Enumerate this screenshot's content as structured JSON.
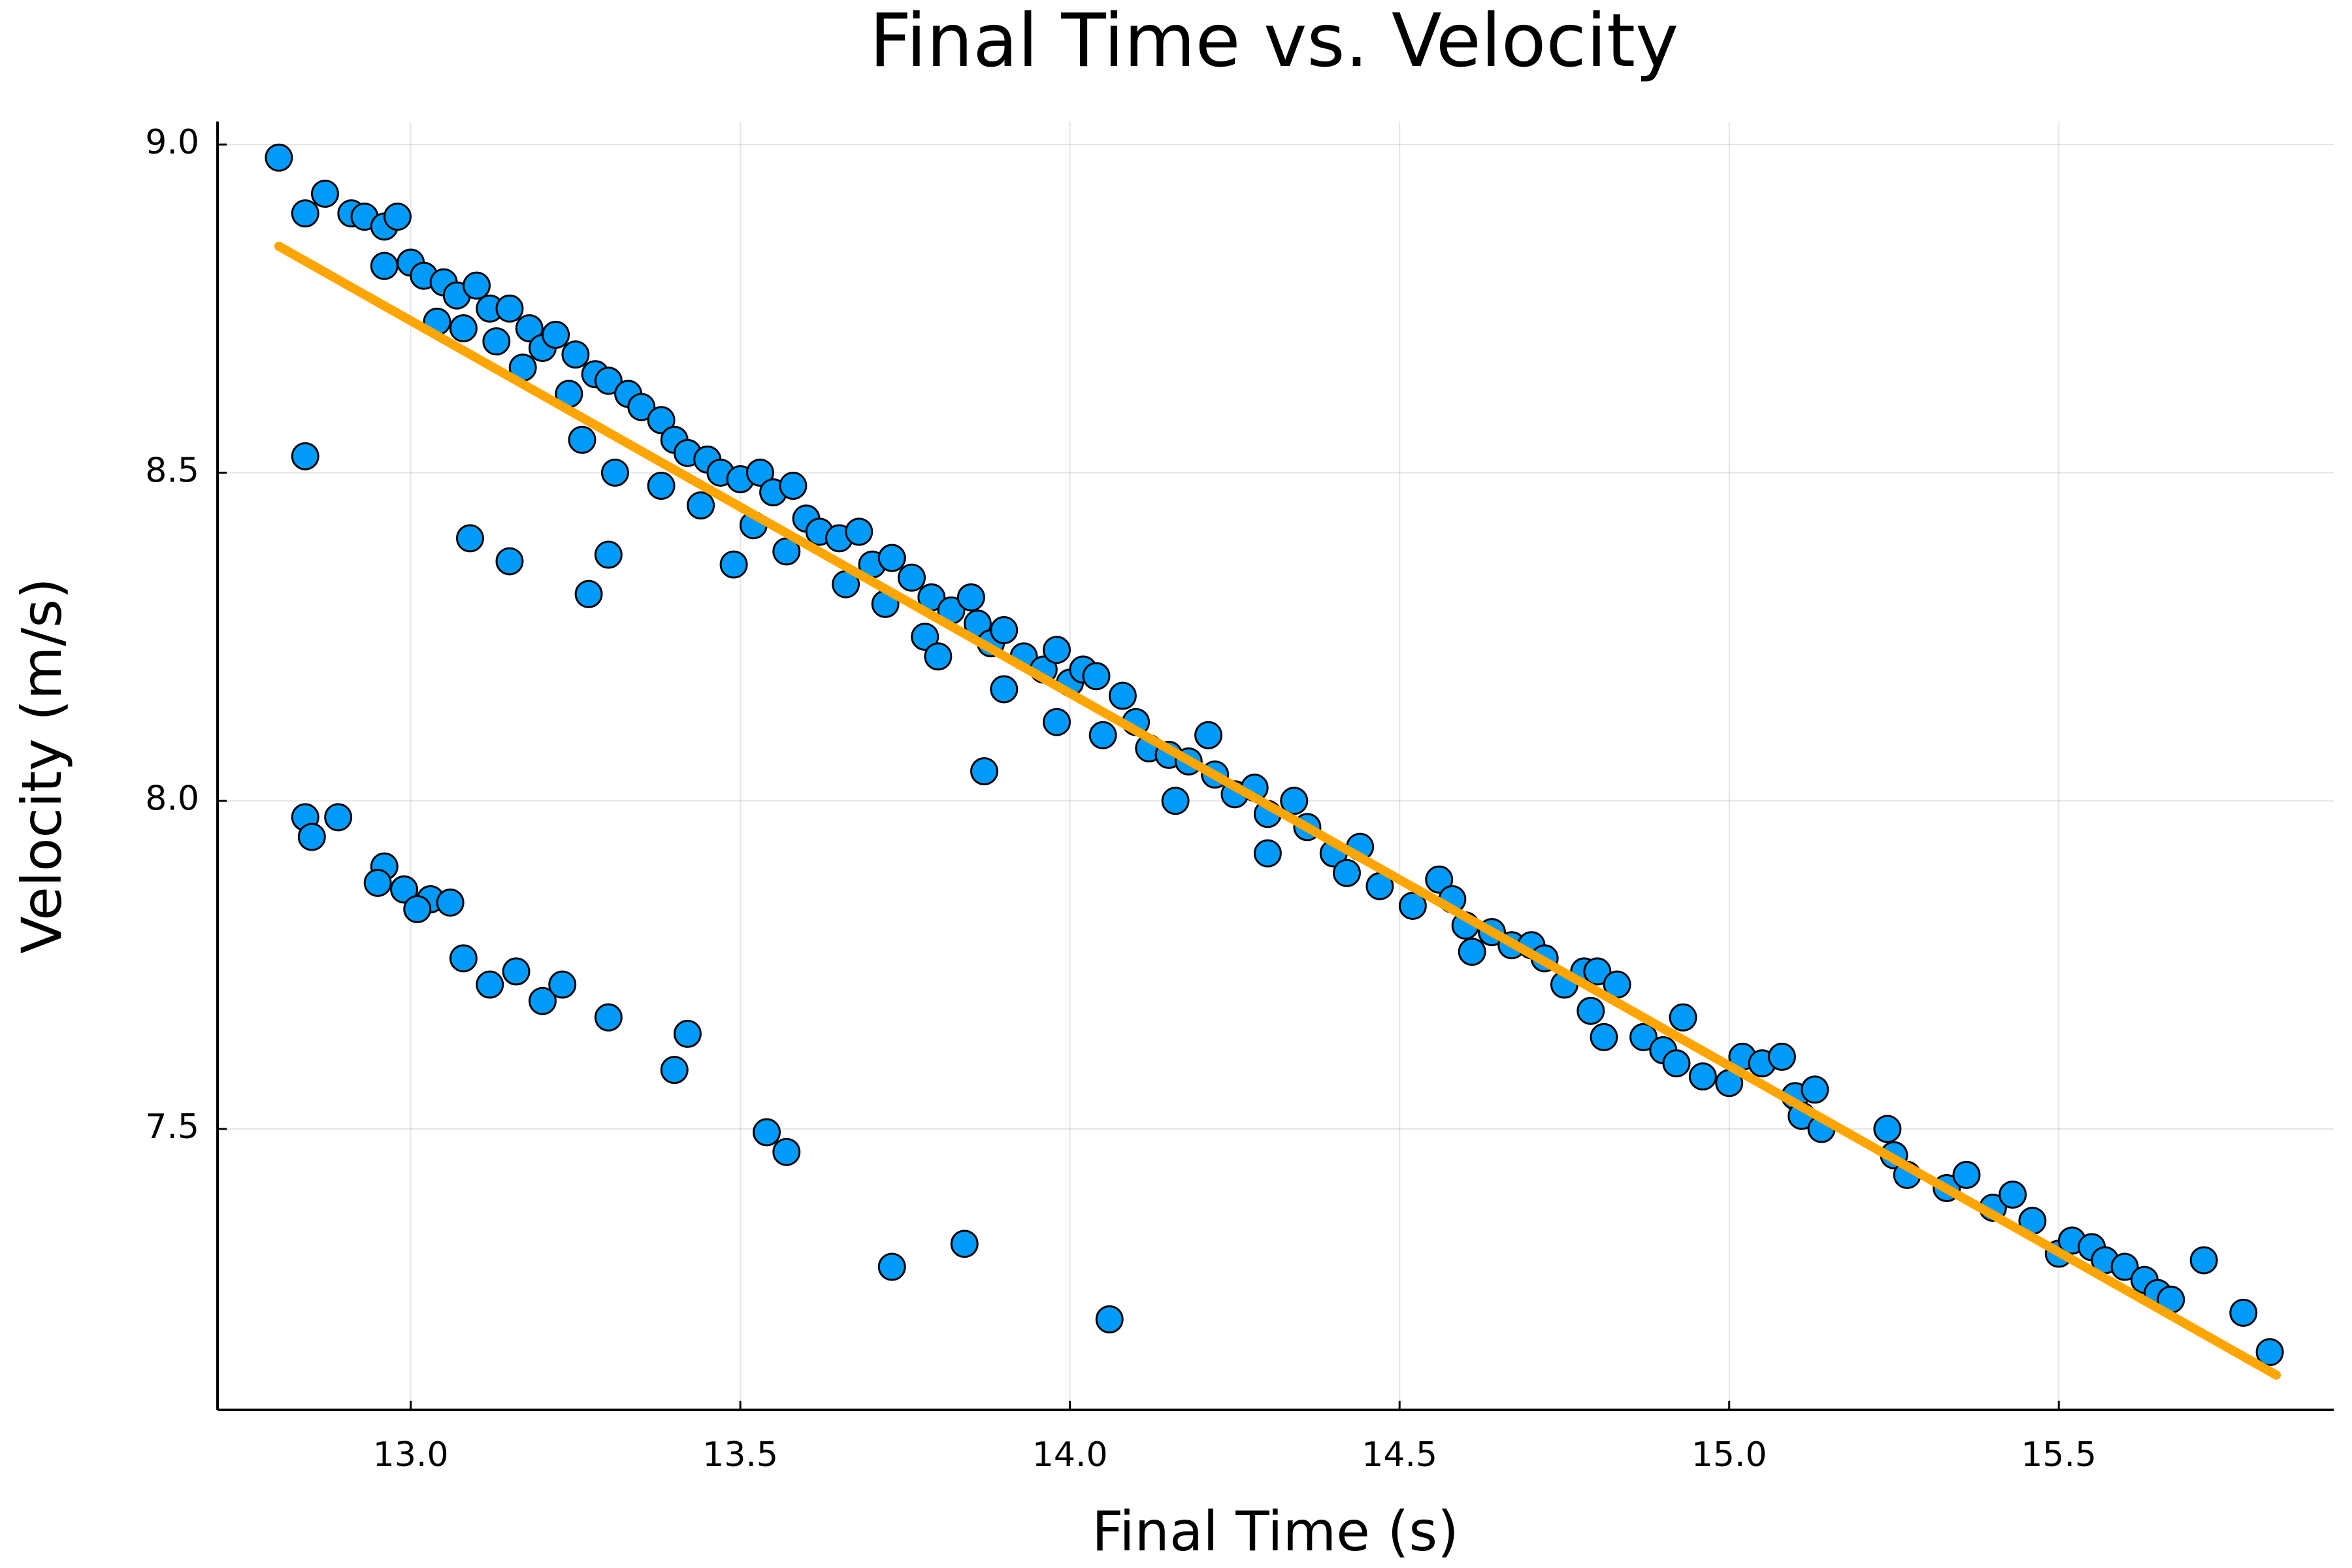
{
  "chart_data": {
    "type": "scatter",
    "title": "Final Time vs. Velocity",
    "x_label": "Final Time (s)",
    "y_label": "Velocity (m/s)",
    "xlim": [
      12.707,
      15.917
    ],
    "ylim": [
      7.072,
      9.035
    ],
    "xticks": [
      {
        "value": 13,
        "label": "13.0"
      },
      13.5,
      {
        "value": 14,
        "label": "14.0"
      },
      14.5,
      {
        "value": 15,
        "label": "15.0"
      },
      15.5
    ],
    "yticks": [
      {
        "value": 7.5,
        "label": "7.5"
      },
      {
        "value": 8,
        "label": "8.0"
      },
      {
        "value": 8.5,
        "label": "8.5"
      },
      {
        "value": 9,
        "label": "9.0"
      }
    ],
    "grid": true,
    "points": {
      "color": "#009af9",
      "x": [
        12.8,
        12.84,
        12.87,
        12.91,
        12.93,
        12.96,
        12.98,
        12.84,
        13.09,
        13.15,
        13.27,
        13.3,
        13.49,
        13.87,
        12.84,
        12.85,
        12.89,
        12.96,
        12.95,
        12.99,
        13.03,
        13.01,
        13.06,
        13.08,
        13.12,
        13.16,
        13.2,
        13.23,
        13.3,
        13.4,
        13.42,
        13.54,
        13.57,
        13.73,
        13.84,
        14.06,
        13.0,
        13.02,
        12.96,
        13.05,
        13.07,
        13.1,
        13.12,
        13.04,
        13.08,
        13.15,
        13.18,
        13.13,
        13.2,
        13.22,
        13.17,
        13.25,
        13.28,
        13.24,
        13.3,
        13.33,
        13.26,
        13.35,
        13.38,
        13.31,
        13.4,
        13.42,
        13.45,
        13.38,
        13.47,
        13.5,
        13.53,
        13.44,
        13.55,
        13.58,
        13.52,
        13.6,
        13.62,
        13.57,
        13.65,
        13.68,
        13.66,
        13.7,
        13.73,
        13.76,
        13.72,
        13.79,
        13.82,
        13.78,
        13.85,
        13.86,
        13.8,
        13.88,
        13.9,
        13.93,
        13.9,
        13.96,
        13.98,
        14.0,
        13.98,
        14.02,
        14.04,
        14.05,
        14.08,
        14.1,
        14.12,
        14.15,
        14.18,
        14.16,
        14.21,
        14.22,
        14.25,
        14.28,
        14.3,
        14.3,
        14.34,
        14.36,
        14.4,
        14.44,
        14.42,
        14.47,
        14.52,
        14.56,
        14.58,
        14.6,
        14.64,
        14.61,
        14.67,
        14.7,
        14.72,
        14.75,
        14.78,
        14.8,
        14.79,
        14.83,
        14.81,
        14.87,
        14.9,
        14.93,
        14.92,
        14.96,
        15.0,
        15.02,
        15.05,
        15.08,
        15.1,
        15.11,
        15.13,
        15.14,
        15.24,
        15.25,
        15.27,
        15.33,
        15.36,
        15.4,
        15.43,
        15.46,
        15.5,
        15.52,
        15.55,
        15.57,
        15.6,
        15.63,
        15.65,
        15.67,
        15.72,
        15.78,
        15.82
      ],
      "y": [
        8.98,
        8.895,
        8.925,
        8.895,
        8.89,
        8.875,
        8.89,
        8.525,
        8.4,
        8.365,
        8.315,
        8.375,
        8.36,
        8.045,
        7.975,
        7.945,
        7.975,
        7.9,
        7.875,
        7.865,
        7.85,
        7.835,
        7.845,
        7.76,
        7.72,
        7.74,
        7.695,
        7.72,
        7.67,
        7.59,
        7.645,
        7.495,
        7.465,
        7.29,
        7.325,
        7.21,
        8.82,
        8.8,
        8.815,
        8.79,
        8.77,
        8.785,
        8.75,
        8.73,
        8.72,
        8.75,
        8.72,
        8.7,
        8.69,
        8.71,
        8.66,
        8.68,
        8.65,
        8.62,
        8.64,
        8.62,
        8.55,
        8.6,
        8.58,
        8.5,
        8.55,
        8.53,
        8.52,
        8.48,
        8.5,
        8.49,
        8.5,
        8.45,
        8.47,
        8.48,
        8.42,
        8.43,
        8.41,
        8.38,
        8.4,
        8.41,
        8.33,
        8.36,
        8.37,
        8.34,
        8.3,
        8.31,
        8.29,
        8.25,
        8.31,
        8.27,
        8.22,
        8.24,
        8.26,
        8.22,
        8.17,
        8.2,
        8.23,
        8.18,
        8.12,
        8.2,
        8.19,
        8.1,
        8.16,
        8.12,
        8.08,
        8.07,
        8.06,
        8.0,
        8.1,
        8.04,
        8.01,
        8.02,
        7.98,
        7.92,
        8.0,
        7.96,
        7.92,
        7.93,
        7.89,
        7.87,
        7.84,
        7.88,
        7.85,
        7.81,
        7.8,
        7.77,
        7.78,
        7.78,
        7.76,
        7.72,
        7.74,
        7.74,
        7.68,
        7.72,
        7.64,
        7.64,
        7.62,
        7.67,
        7.6,
        7.58,
        7.57,
        7.61,
        7.6,
        7.61,
        7.55,
        7.52,
        7.56,
        7.5,
        7.5,
        7.46,
        7.43,
        7.41,
        7.43,
        7.38,
        7.4,
        7.36,
        7.31,
        7.33,
        7.32,
        7.3,
        7.29,
        7.27,
        7.25,
        7.24,
        7.3,
        7.22,
        7.16
      ]
    },
    "fit_line": {
      "color": "#ffa500",
      "x": [
        12.8,
        15.83
      ],
      "y": [
        8.845,
        7.125
      ]
    }
  }
}
